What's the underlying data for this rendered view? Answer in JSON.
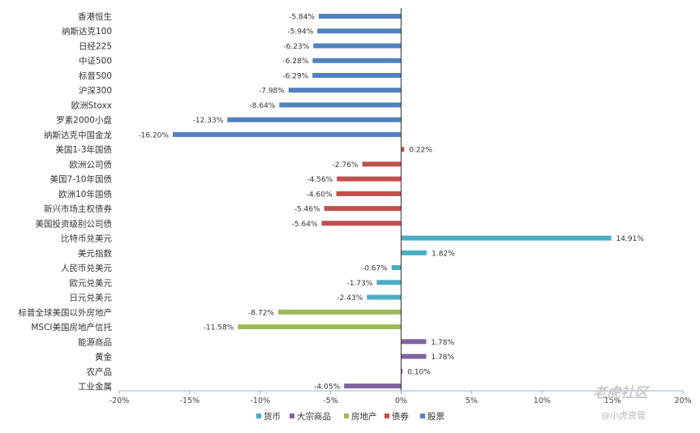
{
  "chart_data": {
    "type": "bar",
    "orientation": "horizontal",
    "categories": [
      "香港恒生",
      "纳斯达克100",
      "日经225",
      "中证500",
      "标普500",
      "沪深300",
      "欧洲Stoxx",
      "罗素2000小盘",
      "纳斯达克中国金龙",
      "美国1-3年国债",
      "欧洲公司债",
      "美国7-10年国债",
      "欧洲10年国债",
      "新兴市场主权债券",
      "美国投资级别公司债",
      "比特币兑美元",
      "美元指数",
      "人民币兑美元",
      "欧元兑美元",
      "日元兑美元",
      "标普全球美国以外房地产",
      "MSCI美国房地产信托",
      "能源商品",
      "黄金",
      "农产品",
      "工业金属"
    ],
    "values": [
      -5.84,
      -5.94,
      -6.23,
      -6.28,
      -6.29,
      -7.98,
      -8.64,
      -12.33,
      -16.2,
      0.22,
      -2.76,
      -4.56,
      -4.6,
      -5.46,
      -5.64,
      14.91,
      1.82,
      -0.67,
      -1.73,
      -2.43,
      -8.72,
      -11.58,
      1.78,
      1.78,
      0.1,
      -4.05
    ],
    "labels": [
      "-5.84%",
      "-5.94%",
      "-6.23%",
      "-6.28%",
      "-6.29%",
      "-7.98%",
      "-8.64%",
      "-12.33%",
      "-16.20%",
      "0.22%",
      "-2.76%",
      "-4.56%",
      "-4.60%",
      "-5.46%",
      "-5.64%",
      "14.91%",
      "1.82%",
      "-0.67%",
      "-1.73%",
      "-2.43%",
      "-8.72%",
      "-11.58%",
      "1.78%",
      "1.78%",
      "0.10%",
      "-4.05%"
    ],
    "groups": [
      "股票",
      "股票",
      "股票",
      "股票",
      "股票",
      "股票",
      "股票",
      "股票",
      "股票",
      "债券",
      "债券",
      "债券",
      "债券",
      "债券",
      "债券",
      "货币",
      "货币",
      "货币",
      "货币",
      "货币",
      "房地产",
      "房地产",
      "大宗商品",
      "大宗商品",
      "大宗商品",
      "大宗商品"
    ],
    "xlim": [
      -20,
      20
    ],
    "xticks": [
      -20,
      -15,
      -10,
      -5,
      0,
      5,
      10,
      15,
      20
    ],
    "xtick_labels": [
      "-20%",
      "-15%",
      "-10%",
      "-5%",
      "0%",
      "5%",
      "10%",
      "15%",
      "20%"
    ],
    "legend": [
      {
        "name": "货币",
        "color": "#4bacc6"
      },
      {
        "name": "大宗商品",
        "color": "#8064a2"
      },
      {
        "name": "房地产",
        "color": "#9bbb59"
      },
      {
        "name": "债券",
        "color": "#c0504d"
      },
      {
        "name": "股票",
        "color": "#4f81bd"
      }
    ],
    "legend_position": "bottom",
    "grid": false,
    "title": "",
    "xlabel": "",
    "ylabel": ""
  },
  "watermark": {
    "main": "老虎社区",
    "sub": "@小虎资管"
  }
}
